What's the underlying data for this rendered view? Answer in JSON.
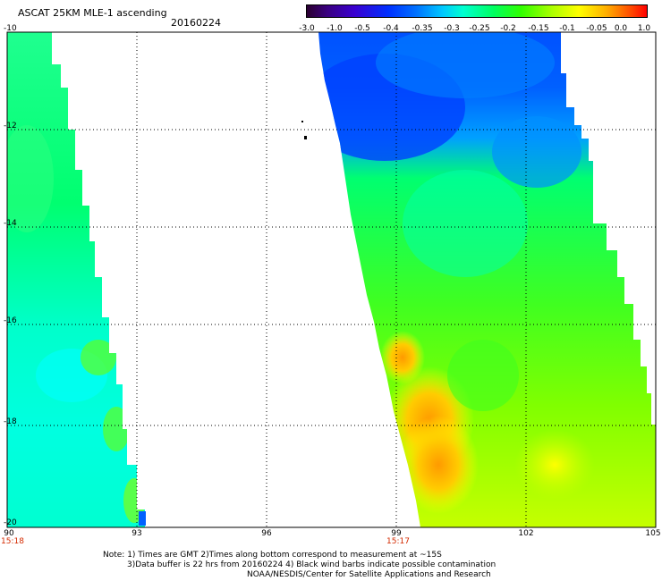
{
  "header": {
    "title": "ASCAT 25KM MLE-1 ascending",
    "date": "20160224"
  },
  "colorbar": {
    "labels": [
      "-3.0",
      "-1.0",
      "-0.5",
      "-0.4",
      "-0.35",
      "-0.3",
      "-0.25",
      "-0.2",
      "-0.15",
      "-0.1",
      "-0.05",
      "0.0",
      "1.0"
    ]
  },
  "axes": {
    "y_ticks": [
      "-10",
      "-12",
      "-14",
      "-16",
      "-18",
      "-20"
    ],
    "x_ticks": [
      "90",
      "93",
      "96",
      "99",
      "102",
      "105"
    ],
    "time_labels": [
      {
        "text": "15:18",
        "lon": 90
      },
      {
        "text": "15:17",
        "lon": 99
      }
    ]
  },
  "notes": {
    "line1": "Note: 1) Times are GMT 2)Times along bottom correspond to measurement at ~15S",
    "line2": "3)Data buffer is 22 hrs from 20160224 4) Black wind barbs indicate possible contamination",
    "line3": "NOAA/NESDIS/Center for Satellite Applications and Research"
  }
}
